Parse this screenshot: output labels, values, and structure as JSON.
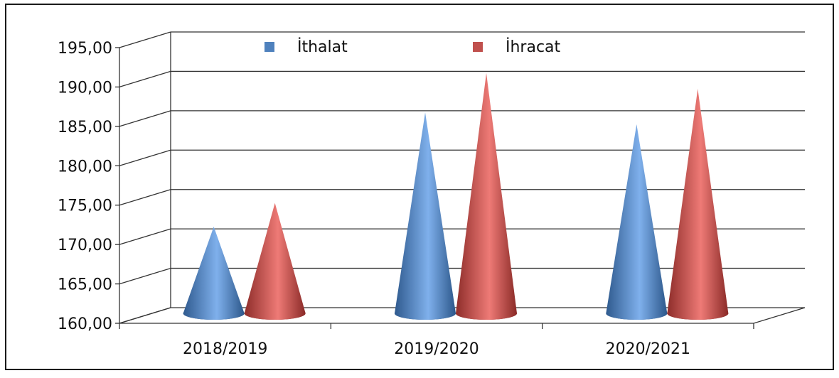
{
  "chart_data": {
    "type": "bar",
    "categories": [
      "2018/2019",
      "2019/2020",
      "2020/2021"
    ],
    "series": [
      {
        "name": "İthalat",
        "values": [
          171.0,
          185.5,
          184.0
        ],
        "color": "#4f81bd"
      },
      {
        "name": "İhracat",
        "values": [
          174.0,
          190.5,
          188.5
        ],
        "color": "#c0504d"
      }
    ],
    "y_ticks": [
      "160,00",
      "165,00",
      "170,00",
      "175,00",
      "180,00",
      "185,00",
      "190,00",
      "195,00"
    ],
    "ylim": [
      160,
      195
    ],
    "xlabel": "",
    "ylabel": "",
    "title": "",
    "grid": true,
    "legend_position": "top"
  }
}
